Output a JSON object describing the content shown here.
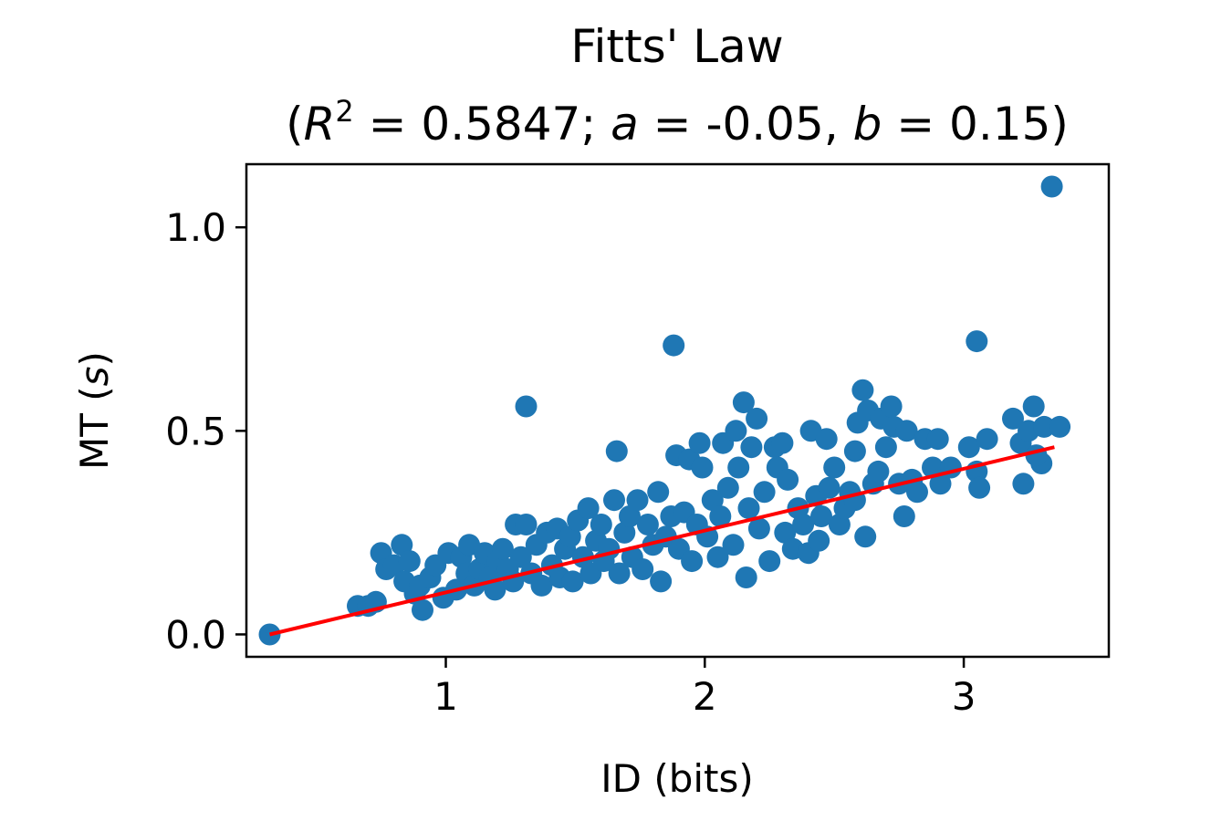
{
  "chart_data": {
    "type": "scatter",
    "title": "Fitts' Law",
    "subtitle": {
      "open": "(",
      "r_var": "R",
      "r_exp": "2",
      "eq": " = ",
      "r_val": "0.5847",
      "sep1": "; ",
      "a_var": "a",
      "a_val": "-0.05",
      "sep2": ", ",
      "b_var": "b",
      "b_val": "0.15",
      "close": ")"
    },
    "xlabel": "ID (bits)",
    "ylabel_main": "MT (",
    "ylabel_unit": "s",
    "ylabel_close": ")",
    "xlim": [
      0.23,
      3.56
    ],
    "ylim": [
      -0.055,
      1.155
    ],
    "xticks": [
      {
        "value": 1,
        "label": "1"
      },
      {
        "value": 2,
        "label": "2"
      },
      {
        "value": 3,
        "label": "3"
      }
    ],
    "yticks": [
      {
        "value": 0.0,
        "label": "0.0"
      },
      {
        "value": 0.5,
        "label": "0.5"
      },
      {
        "value": 1.0,
        "label": "1.0"
      }
    ],
    "grid": false,
    "legend": "none",
    "series": [
      {
        "type": "scatter",
        "color": "#1f77b4",
        "points": [
          [
            0.32,
            0.0
          ],
          [
            0.66,
            0.07
          ],
          [
            0.7,
            0.07
          ],
          [
            0.73,
            0.08
          ],
          [
            0.75,
            0.2
          ],
          [
            0.77,
            0.16
          ],
          [
            0.8,
            0.17
          ],
          [
            0.83,
            0.22
          ],
          [
            0.84,
            0.13
          ],
          [
            0.86,
            0.18
          ],
          [
            0.88,
            0.1
          ],
          [
            0.9,
            0.12
          ],
          [
            0.91,
            0.06
          ],
          [
            0.94,
            0.14
          ],
          [
            0.96,
            0.17
          ],
          [
            0.99,
            0.09
          ],
          [
            1.01,
            0.2
          ],
          [
            1.04,
            0.11
          ],
          [
            1.06,
            0.19
          ],
          [
            1.08,
            0.15
          ],
          [
            1.09,
            0.22
          ],
          [
            1.11,
            0.12
          ],
          [
            1.13,
            0.16
          ],
          [
            1.15,
            0.2
          ],
          [
            1.17,
            0.14
          ],
          [
            1.19,
            0.11
          ],
          [
            1.2,
            0.18
          ],
          [
            1.22,
            0.21
          ],
          [
            1.24,
            0.16
          ],
          [
            1.26,
            0.13
          ],
          [
            1.27,
            0.27
          ],
          [
            1.29,
            0.19
          ],
          [
            1.31,
            0.27
          ],
          [
            1.31,
            0.56
          ],
          [
            1.33,
            0.15
          ],
          [
            1.35,
            0.22
          ],
          [
            1.37,
            0.12
          ],
          [
            1.39,
            0.25
          ],
          [
            1.41,
            0.17
          ],
          [
            1.43,
            0.26
          ],
          [
            1.44,
            0.14
          ],
          [
            1.46,
            0.21
          ],
          [
            1.48,
            0.24
          ],
          [
            1.49,
            0.13
          ],
          [
            1.51,
            0.28
          ],
          [
            1.53,
            0.19
          ],
          [
            1.55,
            0.31
          ],
          [
            1.56,
            0.15
          ],
          [
            1.58,
            0.23
          ],
          [
            1.6,
            0.27
          ],
          [
            1.61,
            0.18
          ],
          [
            1.63,
            0.21
          ],
          [
            1.65,
            0.33
          ],
          [
            1.66,
            0.45
          ],
          [
            1.67,
            0.15
          ],
          [
            1.69,
            0.25
          ],
          [
            1.71,
            0.29
          ],
          [
            1.72,
            0.19
          ],
          [
            1.74,
            0.33
          ],
          [
            1.76,
            0.16
          ],
          [
            1.78,
            0.27
          ],
          [
            1.8,
            0.22
          ],
          [
            1.82,
            0.35
          ],
          [
            1.83,
            0.13
          ],
          [
            1.85,
            0.24
          ],
          [
            1.87,
            0.29
          ],
          [
            1.88,
            0.71
          ],
          [
            1.89,
            0.44
          ],
          [
            1.9,
            0.21
          ],
          [
            1.92,
            0.3
          ],
          [
            1.94,
            0.43
          ],
          [
            1.95,
            0.18
          ],
          [
            1.97,
            0.27
          ],
          [
            1.98,
            0.47
          ],
          [
            1.99,
            0.41
          ],
          [
            2.01,
            0.24
          ],
          [
            2.03,
            0.33
          ],
          [
            2.05,
            0.19
          ],
          [
            2.06,
            0.29
          ],
          [
            2.07,
            0.47
          ],
          [
            2.09,
            0.36
          ],
          [
            2.11,
            0.22
          ],
          [
            2.12,
            0.5
          ],
          [
            2.13,
            0.41
          ],
          [
            2.15,
            0.57
          ],
          [
            2.16,
            0.14
          ],
          [
            2.17,
            0.31
          ],
          [
            2.18,
            0.46
          ],
          [
            2.2,
            0.53
          ],
          [
            2.21,
            0.26
          ],
          [
            2.23,
            0.35
          ],
          [
            2.25,
            0.18
          ],
          [
            2.27,
            0.46
          ],
          [
            2.28,
            0.41
          ],
          [
            2.3,
            0.47
          ],
          [
            2.31,
            0.25
          ],
          [
            2.32,
            0.38
          ],
          [
            2.34,
            0.21
          ],
          [
            2.36,
            0.31
          ],
          [
            2.38,
            0.27
          ],
          [
            2.4,
            0.2
          ],
          [
            2.41,
            0.5
          ],
          [
            2.43,
            0.34
          ],
          [
            2.45,
            0.29
          ],
          [
            2.47,
            0.48
          ],
          [
            2.48,
            0.36
          ],
          [
            2.5,
            0.41
          ],
          [
            2.52,
            0.27
          ],
          [
            2.54,
            0.31
          ],
          [
            2.56,
            0.35
          ],
          [
            2.58,
            0.45
          ],
          [
            2.59,
            0.52
          ],
          [
            2.61,
            0.6
          ],
          [
            2.62,
            0.24
          ],
          [
            2.63,
            0.55
          ],
          [
            2.65,
            0.37
          ],
          [
            2.67,
            0.4
          ],
          [
            2.68,
            0.53
          ],
          [
            2.7,
            0.46
          ],
          [
            2.72,
            0.56
          ],
          [
            2.73,
            0.51
          ],
          [
            2.75,
            0.37
          ],
          [
            2.77,
            0.29
          ],
          [
            2.78,
            0.5
          ],
          [
            2.8,
            0.38
          ],
          [
            2.82,
            0.35
          ],
          [
            2.85,
            0.48
          ],
          [
            2.88,
            0.41
          ],
          [
            2.9,
            0.48
          ],
          [
            2.91,
            0.37
          ],
          [
            3.02,
            0.46
          ],
          [
            3.05,
            0.72
          ],
          [
            3.05,
            0.4
          ],
          [
            3.06,
            0.36
          ],
          [
            3.09,
            0.48
          ],
          [
            3.19,
            0.53
          ],
          [
            3.22,
            0.47
          ],
          [
            3.23,
            0.37
          ],
          [
            3.25,
            0.5
          ],
          [
            3.27,
            0.56
          ],
          [
            3.3,
            0.42
          ],
          [
            3.31,
            0.51
          ],
          [
            3.34,
            1.1
          ],
          [
            3.37,
            0.51
          ],
          [
            3.28,
            0.44
          ],
          [
            2.95,
            0.41
          ],
          [
            2.58,
            0.33
          ],
          [
            2.44,
            0.23
          ]
        ]
      },
      {
        "type": "line",
        "color": "#ff0000",
        "points": [
          [
            0.32,
            0.0
          ],
          [
            3.35,
            0.46
          ]
        ]
      }
    ]
  }
}
